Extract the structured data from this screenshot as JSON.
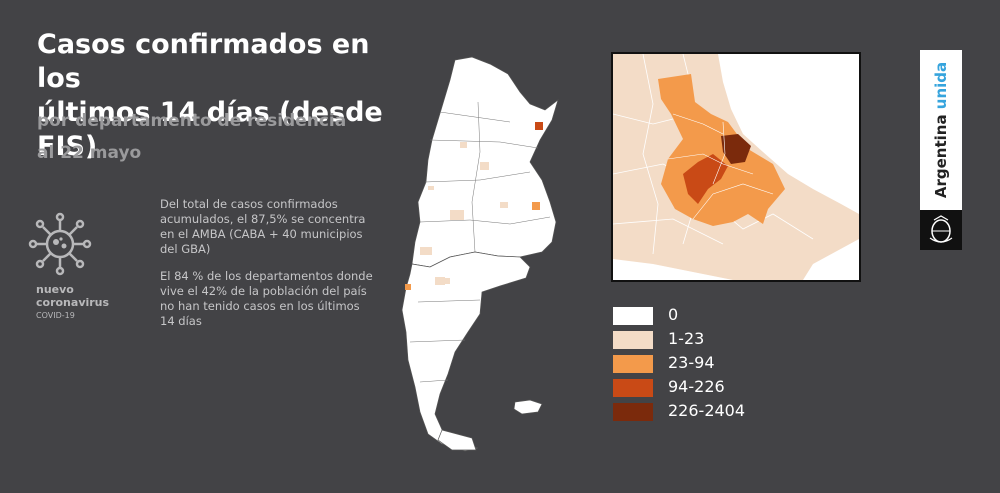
{
  "header": {
    "title_line1": "Casos confirmados en los",
    "title_line2": "últimos 14 días (desde FIS)",
    "subtitle_line1": "por departamento de residencia",
    "subtitle_line2": "al 22 mayo"
  },
  "virus_label": {
    "line1": "nuevo",
    "line2": "coronavirus",
    "line3": "COVID-19"
  },
  "info": {
    "paragraph1": "Del total de casos confirmados acumulados, el 87,5% se concentra en el AMBA (CABA + 40 municipios del GBA)",
    "paragraph2": "El 84 % de los departamentos donde vive el 42% de la población del país no han tenido casos en los últimos 14 días"
  },
  "legend": {
    "items": [
      {
        "label": "0",
        "color": "#ffffff"
      },
      {
        "label": "1-23",
        "color": "#f3dcc7"
      },
      {
        "label": "23-94",
        "color": "#f39a4b"
      },
      {
        "label": "94-226",
        "color": "#c94a16"
      },
      {
        "label": "226-2404",
        "color": "#7b2a0c"
      }
    ]
  },
  "brand": {
    "text_part1": "Argentina ",
    "text_part2": "unida",
    "accent_color": "#36a4dd"
  },
  "icons": {
    "virus": "virus-icon",
    "seal": "national-seal-icon"
  }
}
